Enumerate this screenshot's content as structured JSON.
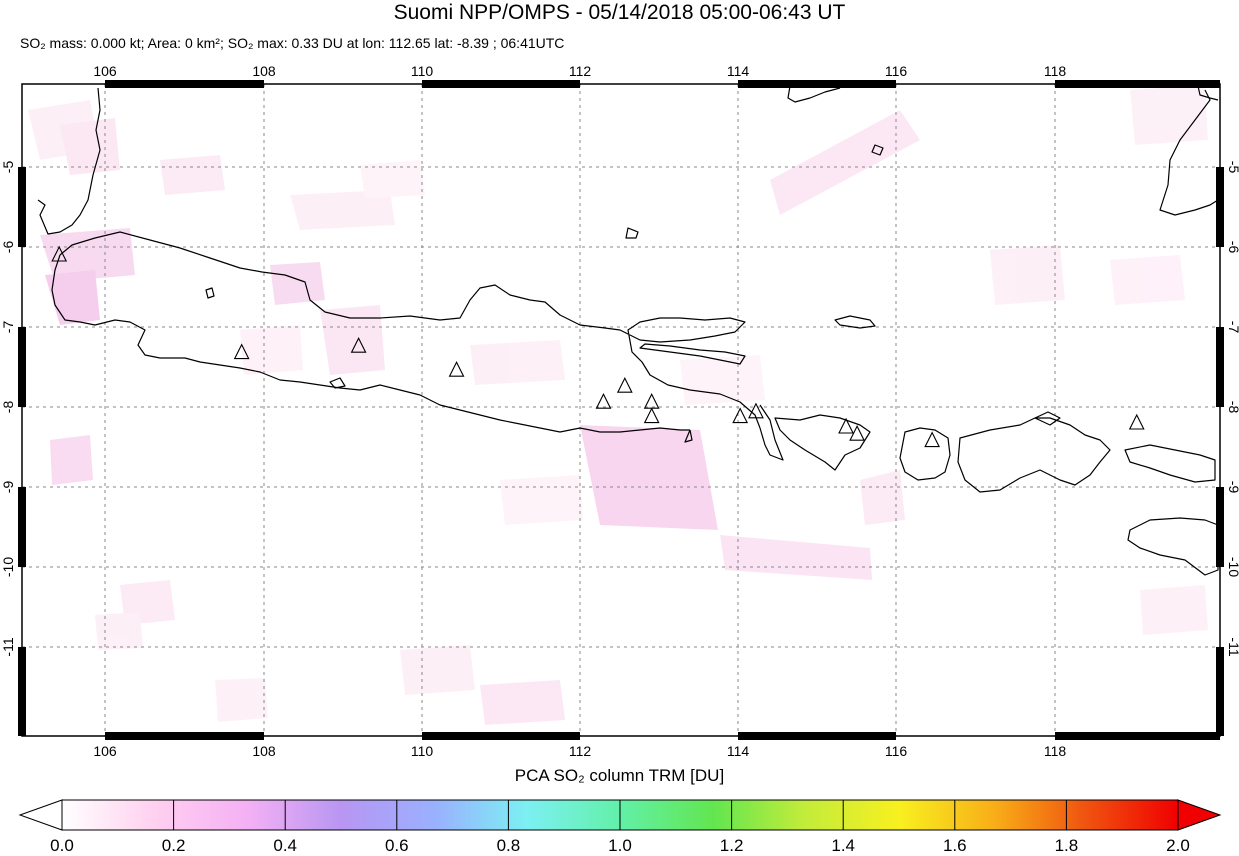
{
  "title": "Suomi NPP/OMPS - 05/14/2018 05:00-06:43 UT",
  "subtitle": {
    "so2_mass": "SO₂ mass: 0.000 kt; Area: 0 km²; SO₂ max: 0.33 DU at lon: 112.65 lat: -8.39 ; 06:41UTC"
  },
  "map": {
    "lon_range": [
      104.9,
      120.0
    ],
    "lat_range": [
      -12.1,
      -4.0
    ],
    "lon_ticks": [
      "106",
      "108",
      "110",
      "112",
      "114",
      "116",
      "118"
    ],
    "lat_ticks": [
      "-5",
      "-6",
      "-7",
      "-8",
      "-9",
      "-10",
      "-11"
    ],
    "gridlines": true,
    "volcano_markers": [
      {
        "lon": 105.42,
        "lat": -6.1
      },
      {
        "lon": 107.73,
        "lat": -7.32
      },
      {
        "lon": 109.21,
        "lat": -7.24
      },
      {
        "lon": 110.45,
        "lat": -7.54
      },
      {
        "lon": 112.31,
        "lat": -7.94
      },
      {
        "lon": 112.58,
        "lat": -7.74
      },
      {
        "lon": 112.92,
        "lat": -7.94
      },
      {
        "lon": 112.92,
        "lat": -8.12
      },
      {
        "lon": 114.04,
        "lat": -8.12
      },
      {
        "lon": 114.24,
        "lat": -8.06
      },
      {
        "lon": 115.38,
        "lat": -8.25
      },
      {
        "lon": 115.52,
        "lat": -8.34
      },
      {
        "lon": 116.47,
        "lat": -8.42
      },
      {
        "lon": 119.06,
        "lat": -8.2
      }
    ],
    "so2_max": {
      "value": 0.33,
      "lon": 112.65,
      "lat": -8.39
    }
  },
  "colorbar": {
    "title": "PCA SO₂ column TRM [DU]",
    "labels": [
      "0.0",
      "0.2",
      "0.4",
      "0.6",
      "0.8",
      "1.0",
      "1.2",
      "1.4",
      "1.6",
      "1.8",
      "2.0"
    ],
    "range": [
      0.0,
      2.0
    ],
    "colors": [
      "#ffffff",
      "#ffd0f0",
      "#f4b0f4",
      "#b896f2",
      "#9ab0ff",
      "#7cf0f2",
      "#62f0a8",
      "#62e650",
      "#c4ec3a",
      "#f8f020",
      "#f8b018",
      "#f05410",
      "#f00000"
    ]
  }
}
